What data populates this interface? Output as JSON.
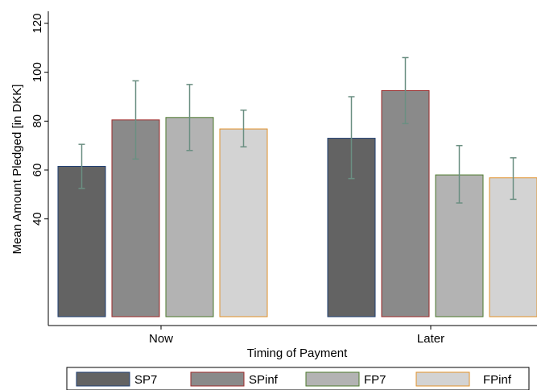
{
  "chart_data": {
    "type": "bar",
    "title": "",
    "xlabel": "Timing of Payment",
    "ylabel": "Mean Amount Pledged [in DKK]",
    "ylim": [
      0,
      120
    ],
    "yticks": [
      "40",
      "60",
      "80",
      "100",
      "120"
    ],
    "grid": false,
    "legend_position": "bottom",
    "categories": [
      "Now",
      "Later"
    ],
    "series": [
      {
        "name": "SP7",
        "fill": "#636363",
        "edge": "#1f3f73",
        "values": [
          61.5,
          73.0
        ],
        "ci_low": [
          52.5,
          56.5
        ],
        "ci_high": [
          70.5,
          90.0
        ]
      },
      {
        "name": "SPinf",
        "fill": "#8a8a8a",
        "edge": "#9c2a2a",
        "values": [
          80.5,
          92.5
        ],
        "ci_low": [
          64.5,
          79.0
        ],
        "ci_high": [
          96.5,
          106.0
        ]
      },
      {
        "name": "FP7",
        "fill": "#b3b3b3",
        "edge": "#4e7a2e",
        "values": [
          81.5,
          58.0
        ],
        "ci_low": [
          68.0,
          46.5
        ],
        "ci_high": [
          95.0,
          70.0
        ]
      },
      {
        "name": "FPinf",
        "fill": "#d3d3d3",
        "edge": "#e0902a",
        "values": [
          76.8,
          56.8
        ],
        "ci_low": [
          69.5,
          48.0
        ],
        "ci_high": [
          84.5,
          65.0
        ]
      }
    ],
    "errorbar_color": "#6b8f82"
  }
}
